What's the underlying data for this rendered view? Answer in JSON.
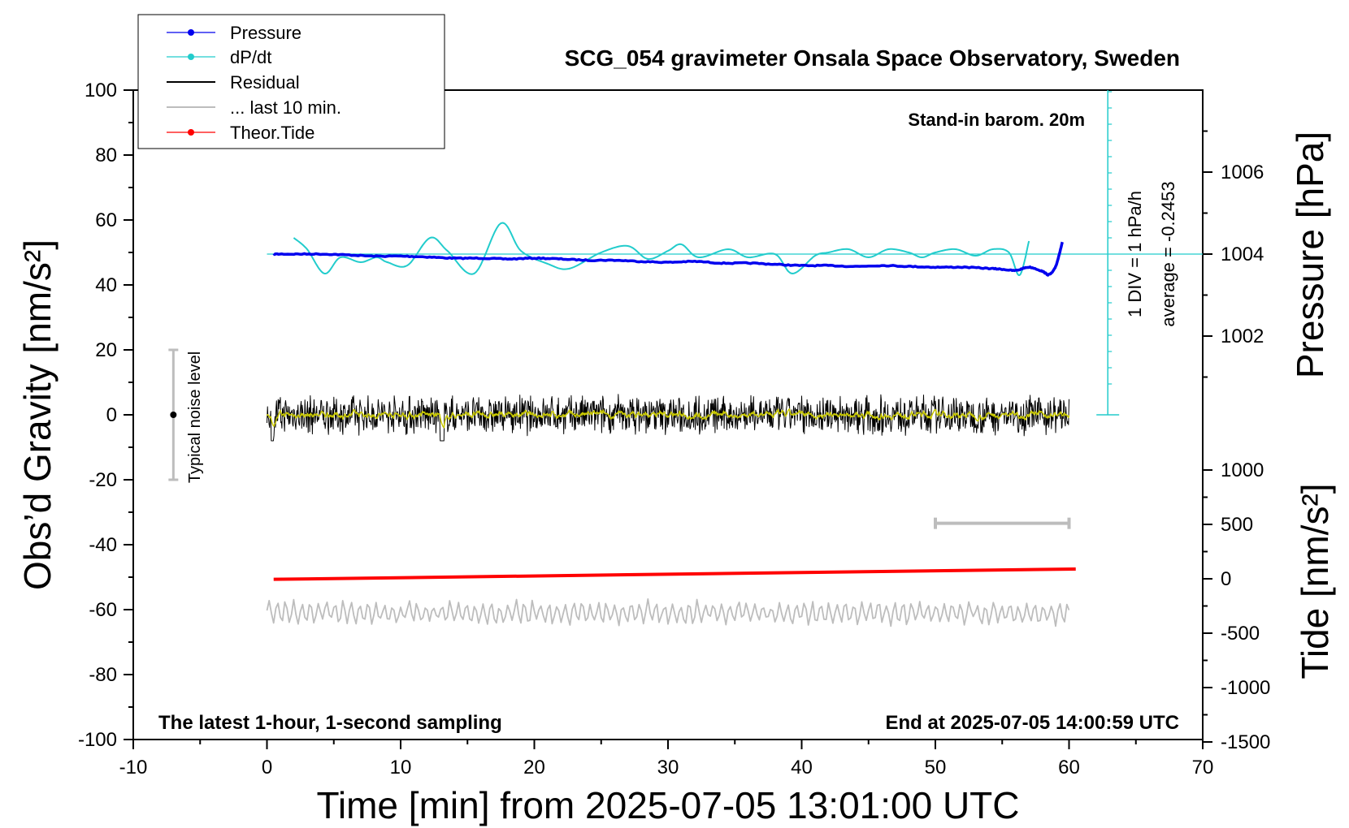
{
  "chart_data": {
    "type": "line",
    "title": "SCG_054 gravimeter Onsala Space Observatory, Sweden",
    "xlabel": "Time [min] from 2025-07-05 13:01:00 UTC",
    "ylabel": "Obs’d Gravity [nm/s²]",
    "ylabel_right_pressure": "Pressure [hPa]",
    "ylabel_right_tide": "Tide [nm/s²]",
    "xlim": [
      -10,
      70
    ],
    "ylim": [
      -100,
      100
    ],
    "xticks": [
      "-10",
      "0",
      "10",
      "20",
      "30",
      "40",
      "50",
      "60",
      "70"
    ],
    "yticks": [
      "100",
      "80",
      "60",
      "40",
      "20",
      "0",
      "-20",
      "-40",
      "-60",
      "-80",
      "-100"
    ],
    "pressure_ticks": [
      "1006",
      "1004",
      "1002"
    ],
    "tide_ticks": [
      "1000",
      "500",
      "0",
      "-500",
      "-1000",
      "-1500"
    ],
    "legend": [
      "Pressure",
      "dP/dt",
      "Residual",
      "... last 10 min.",
      "Theor.Tide"
    ],
    "colors": {
      "pressure": "#0000ee",
      "dpdt": "#22cccc",
      "residual": "#000000",
      "residual_smooth": "#c8c800",
      "last10": "#bdbdbd",
      "tide": "#ff0000"
    },
    "annotations": {
      "barometer": "Stand-in barom. 20m",
      "div_note": "1 DIV = 1 hPa/h",
      "average": "average = -0.2453",
      "noise": "Typical noise level",
      "footer_left": "The latest 1-hour, 1-second sampling",
      "footer_right": "End at 2025-07-05 14:00:59 UTC"
    },
    "pressure_series": {
      "name": "Pressure",
      "unit": "hPa",
      "x": [
        0.5,
        2,
        4,
        6,
        8,
        10,
        12,
        14,
        16,
        18,
        20,
        22,
        24,
        26,
        28,
        30,
        32,
        34,
        36,
        38,
        40,
        42,
        44,
        46,
        48,
        50,
        52,
        54,
        55,
        56,
        57,
        58,
        58.5,
        59,
        59.5
      ],
      "values": [
        1004.0,
        1004.0,
        1004.0,
        1003.98,
        1003.95,
        1003.95,
        1003.93,
        1003.9,
        1003.9,
        1003.88,
        1003.9,
        1003.88,
        1003.85,
        1003.85,
        1003.82,
        1003.8,
        1003.82,
        1003.78,
        1003.78,
        1003.75,
        1003.72,
        1003.72,
        1003.7,
        1003.72,
        1003.7,
        1003.68,
        1003.68,
        1003.65,
        1003.63,
        1003.6,
        1003.68,
        1003.58,
        1003.5,
        1003.7,
        1004.3
      ]
    },
    "dpdt_series": {
      "name": "dP/dt",
      "unit": "hPa/h (1 DIV = 1 hPa/h, zero at 1004 hPa level)",
      "x": [
        2,
        3,
        4.3,
        5.5,
        7,
        8.2,
        9,
        10.5,
        12.2,
        13.5,
        15.5,
        17.5,
        19,
        21,
        22.6,
        25,
        27,
        28.5,
        30,
        31,
        32.3,
        34.5,
        36,
        38,
        39.3,
        41,
        42,
        43.5,
        45,
        46.5,
        48,
        49,
        50,
        51.5,
        53,
        54.3,
        55.5,
        56.3,
        57
      ],
      "values": [
        1.0,
        0.3,
        -1.2,
        -0.2,
        -0.5,
        -0.2,
        -0.5,
        -0.7,
        1.0,
        0.2,
        -1.2,
        1.9,
        0.2,
        -0.6,
        -0.9,
        0.1,
        0.5,
        -0.3,
        0.2,
        0.6,
        -0.2,
        0.3,
        -0.2,
        0.0,
        -1.2,
        -0.1,
        0.1,
        0.3,
        -0.2,
        0.3,
        0.1,
        -0.2,
        0.1,
        0.3,
        -0.1,
        0.3,
        0.1,
        -1.3,
        0.8
      ]
    },
    "residual_series": {
      "name": "Residual",
      "unit": "nm/s²",
      "x_range": [
        0,
        60
      ],
      "mean": 0,
      "amplitude": 6
    },
    "last10_series": {
      "name": "... last 10 min.",
      "unit": "nm/s² (offset trace)",
      "x_range": [
        0,
        60
      ],
      "baseline": -61,
      "amplitude": 3
    },
    "tide_series": {
      "name": "Theor.Tide",
      "unit": "nm/s²",
      "x": [
        0.5,
        60.5
      ],
      "values": [
        -5,
        90
      ]
    },
    "noise_bar": {
      "x": -7,
      "center": 0,
      "low": -20,
      "high": 20
    },
    "last10_bar": {
      "x_start": 50,
      "x_end": 60,
      "tide_level": 510
    }
  }
}
